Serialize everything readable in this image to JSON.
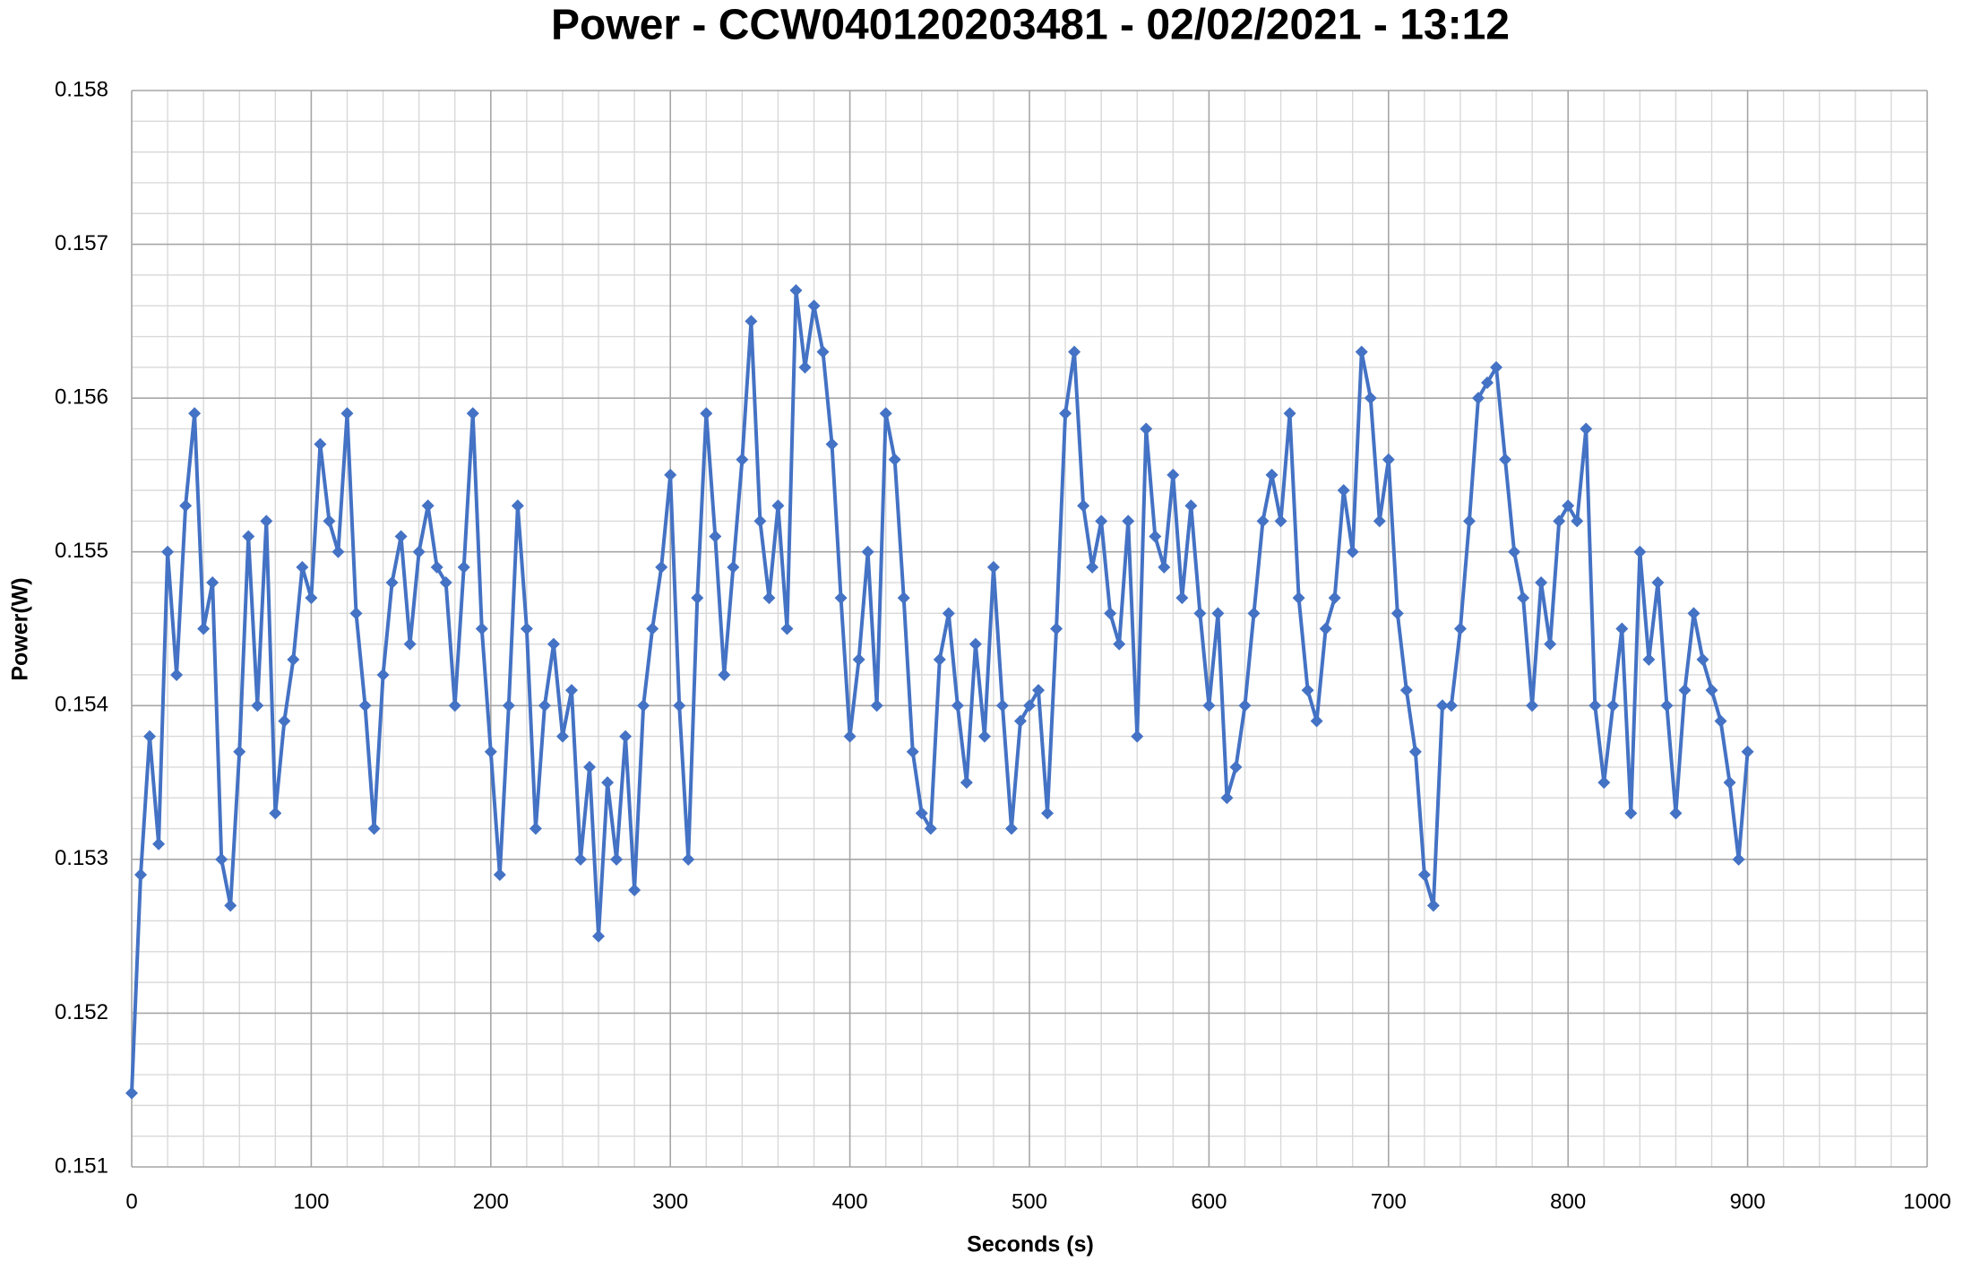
{
  "chart_data": {
    "type": "line",
    "title": "Power - CCW040120203481 - 02/02/2021 - 13:12",
    "x_label": "Seconds (s)",
    "y_label": "Power(W)",
    "xlim": [
      0,
      1000
    ],
    "xticks": [
      0,
      100,
      200,
      300,
      400,
      500,
      600,
      700,
      800,
      900,
      1000
    ],
    "ylim": [
      0.151,
      0.158
    ],
    "yticks": [
      0.151,
      0.152,
      0.153,
      0.154,
      0.155,
      0.156,
      0.157,
      0.158
    ],
    "grid": true,
    "minor_grid": true,
    "markers": "diamond",
    "x": [
      0,
      5,
      10,
      15,
      20,
      25,
      30,
      35,
      40,
      45,
      50,
      55,
      60,
      65,
      70,
      75,
      80,
      85,
      90,
      95,
      100,
      105,
      110,
      115,
      120,
      125,
      130,
      135,
      140,
      145,
      150,
      155,
      160,
      165,
      170,
      175,
      180,
      185,
      190,
      195,
      200,
      205,
      210,
      215,
      220,
      225,
      230,
      235,
      240,
      245,
      250,
      255,
      260,
      265,
      270,
      275,
      280,
      285,
      290,
      295,
      300,
      305,
      310,
      315,
      320,
      325,
      330,
      335,
      340,
      345,
      350,
      355,
      360,
      365,
      370,
      375,
      380,
      385,
      390,
      395,
      400,
      405,
      410,
      415,
      420,
      425,
      430,
      435,
      440,
      445,
      450,
      455,
      460,
      465,
      470,
      475,
      480,
      485,
      490,
      495,
      500,
      505,
      510,
      515,
      520,
      525,
      530,
      535,
      540,
      545,
      550,
      555,
      560,
      565,
      570,
      575,
      580,
      585,
      590,
      595,
      600,
      605,
      610,
      615,
      620,
      625,
      630,
      635,
      640,
      645,
      650,
      655,
      660,
      665,
      670,
      675,
      680,
      685,
      690,
      695,
      700,
      705,
      710,
      715,
      720,
      725,
      730,
      735,
      740,
      745,
      750,
      755,
      760,
      765,
      770,
      775,
      780,
      785,
      790,
      795,
      800,
      805,
      810,
      815,
      820,
      825,
      830,
      835,
      840,
      845,
      850,
      855,
      860,
      865,
      870,
      875,
      880,
      885,
      890,
      895,
      900
    ],
    "series": [
      {
        "color": "#4472c4",
        "values": [
          0.15148,
          0.1529,
          0.1538,
          0.1531,
          0.155,
          0.1542,
          0.1553,
          0.1559,
          0.1545,
          0.1548,
          0.153,
          0.1527,
          0.1537,
          0.1551,
          0.154,
          0.1552,
          0.1533,
          0.1539,
          0.1543,
          0.1549,
          0.1547,
          0.1557,
          0.1552,
          0.155,
          0.1559,
          0.1546,
          0.154,
          0.1532,
          0.1542,
          0.1548,
          0.1551,
          0.1544,
          0.155,
          0.1553,
          0.1549,
          0.1548,
          0.154,
          0.1549,
          0.1559,
          0.1545,
          0.1537,
          0.1529,
          0.154,
          0.1553,
          0.1545,
          0.1532,
          0.154,
          0.1544,
          0.1538,
          0.1541,
          0.153,
          0.1536,
          0.1525,
          0.1535,
          0.153,
          0.1538,
          0.1528,
          0.154,
          0.1545,
          0.1549,
          0.1555,
          0.154,
          0.153,
          0.1547,
          0.1559,
          0.1551,
          0.1542,
          0.1549,
          0.1556,
          0.1565,
          0.1552,
          0.1547,
          0.1553,
          0.1545,
          0.1567,
          0.1562,
          0.1566,
          0.1563,
          0.1557,
          0.1547,
          0.1538,
          0.1543,
          0.155,
          0.154,
          0.1559,
          0.1556,
          0.1547,
          0.1537,
          0.1533,
          0.1532,
          0.1543,
          0.1546,
          0.154,
          0.1535,
          0.1544,
          0.1538,
          0.1549,
          0.154,
          0.1532,
          0.1539,
          0.154,
          0.1541,
          0.1533,
          0.1545,
          0.1559,
          0.1563,
          0.1553,
          0.1549,
          0.1552,
          0.1546,
          0.1544,
          0.1552,
          0.1538,
          0.1558,
          0.1551,
          0.1549,
          0.1555,
          0.1547,
          0.1553,
          0.1546,
          0.154,
          0.1546,
          0.1534,
          0.1536,
          0.154,
          0.1546,
          0.1552,
          0.1555,
          0.1552,
          0.1559,
          0.1547,
          0.1541,
          0.1539,
          0.1545,
          0.1547,
          0.1554,
          0.155,
          0.1563,
          0.156,
          0.1552,
          0.1556,
          0.1546,
          0.1541,
          0.1537,
          0.1529,
          0.1527,
          0.154,
          0.154,
          0.1545,
          0.1552,
          0.156,
          0.1561,
          0.1562,
          0.1556,
          0.155,
          0.1547,
          0.154,
          0.1548,
          0.1544,
          0.1552,
          0.1553,
          0.1552,
          0.1558,
          0.154,
          0.1535,
          0.154,
          0.1545,
          0.1533,
          0.155,
          0.1543,
          0.1548,
          0.154,
          0.1533,
          0.1541,
          0.1546,
          0.1543,
          0.1541,
          0.1539,
          0.1535,
          0.153,
          0.1537
        ]
      }
    ]
  }
}
